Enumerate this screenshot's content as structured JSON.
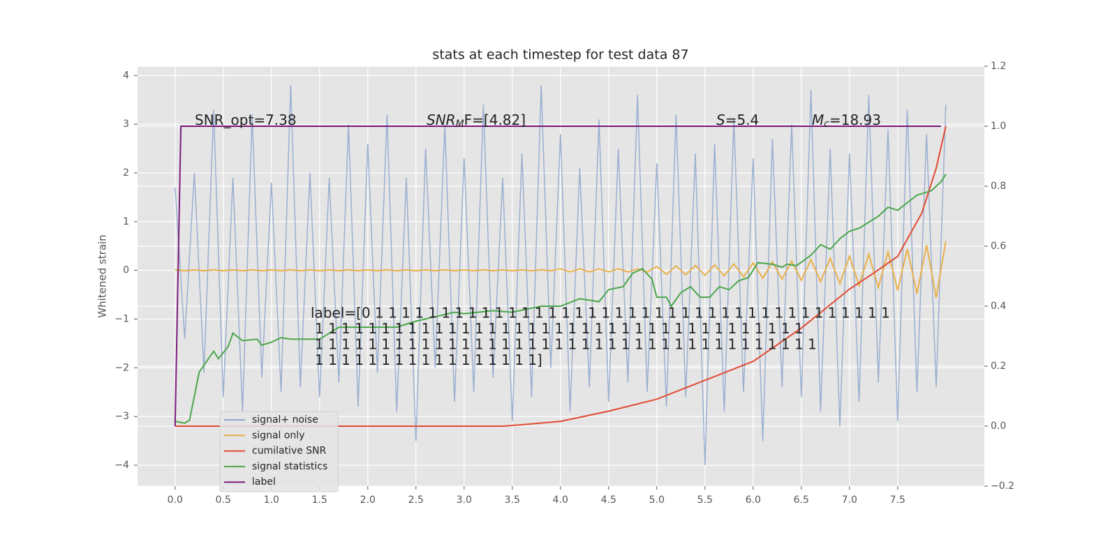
{
  "chart_data": {
    "type": "line",
    "title": "stats at each timestep for test data 87",
    "y_label": "Whitened strain",
    "xlim": [
      -0.39,
      8.4
    ],
    "ylim": [
      -4.43,
      4.19
    ],
    "y2lim": [
      -0.2,
      1.2
    ],
    "xticks": [
      {
        "value": 0,
        "label": "0.0"
      },
      0.5,
      {
        "value": 1,
        "label": "1.0"
      },
      1.5,
      {
        "value": 2,
        "label": "2.0"
      },
      2.5,
      {
        "value": 3,
        "label": "3.0"
      },
      3.5,
      {
        "value": 4,
        "label": "4.0"
      },
      4.5,
      {
        "value": 5,
        "label": "5.0"
      },
      5.5,
      {
        "value": 6,
        "label": "6.0"
      },
      6.5,
      {
        "value": 7,
        "label": "7.0"
      },
      7.5
    ],
    "yticks": [
      {
        "value": -4,
        "label": "−4"
      },
      {
        "value": -3,
        "label": "−3"
      },
      {
        "value": -2,
        "label": "−2"
      },
      {
        "value": -1,
        "label": "−1"
      },
      0,
      1,
      2,
      3,
      4
    ],
    "y2ticks": [
      {
        "value": -0.2,
        "label": "−0.2"
      },
      {
        "value": 0,
        "label": "0.0"
      },
      0.2,
      0.4,
      0.6,
      0.8,
      {
        "value": 1,
        "label": "1.0"
      },
      1.2
    ],
    "grid": true,
    "legend": "lower left",
    "series": [
      {
        "name": "signal+ noise",
        "color": "#92a8cd",
        "x": [
          0,
          0.1,
          0.2,
          0.3,
          0.4,
          0.5,
          0.6,
          0.7,
          0.8,
          0.9,
          1,
          1.1,
          1.2,
          1.3,
          1.4,
          1.5,
          1.6,
          1.7,
          1.8,
          1.9,
          2,
          2.1,
          2.2,
          2.3,
          2.4,
          2.5,
          2.6,
          2.7,
          2.8,
          2.9,
          3,
          3.1,
          3.2,
          3.3,
          3.4,
          3.5,
          3.6,
          3.7,
          3.8,
          3.9,
          4,
          4.1,
          4.2,
          4.3,
          4.4,
          4.5,
          4.6,
          4.7,
          4.8,
          4.9,
          5,
          5.1,
          5.2,
          5.3,
          5.4,
          5.5,
          5.6,
          5.7,
          5.8,
          5.9,
          6,
          6.1,
          6.2,
          6.3,
          6.4,
          6.5,
          6.6,
          6.7,
          6.8,
          6.9,
          7,
          7.1,
          7.2,
          7.3,
          7.4,
          7.5,
          7.6,
          7.7,
          7.8,
          7.9,
          8
        ],
        "values": [
          1.7,
          -1.4,
          2.0,
          -2.1,
          3.3,
          -2.6,
          1.9,
          -2.9,
          3.2,
          -2.2,
          1.8,
          -2.5,
          3.8,
          -2.4,
          2.0,
          -2.6,
          1.9,
          -2.3,
          3.0,
          -2.8,
          2.6,
          -2.1,
          3.2,
          -2.9,
          1.9,
          -3.5,
          2.5,
          -2.0,
          3.0,
          -2.7,
          2.3,
          -2.5,
          3.4,
          -2.2,
          1.9,
          -3.1,
          2.4,
          -2.6,
          3.8,
          -2.0,
          2.8,
          -2.9,
          2.1,
          -2.4,
          3.1,
          -2.7,
          2.5,
          -2.3,
          3.6,
          -2.5,
          2.2,
          -2.8,
          3.2,
          -2.6,
          2.4,
          -4.0,
          2.6,
          -2.9,
          3.1,
          -2.5,
          2.3,
          -3.5,
          2.7,
          -2.4,
          3.0,
          -2.6,
          3.7,
          -2.9,
          2.5,
          -3.2,
          2.4,
          -2.7,
          3.6,
          -2.3,
          2.9,
          -3.1,
          3.3,
          -2.5,
          2.8,
          -2.4,
          3.4
        ]
      },
      {
        "name": "signal only",
        "color": "#e8b04a",
        "x": [
          0,
          0.1,
          0.2,
          0.3,
          0.4,
          0.5,
          0.6,
          0.7,
          0.8,
          0.9,
          1,
          1.1,
          1.2,
          1.3,
          1.4,
          1.5,
          1.6,
          1.7,
          1.8,
          1.9,
          2,
          2.1,
          2.2,
          2.3,
          2.4,
          2.5,
          2.6,
          2.7,
          2.8,
          2.9,
          3,
          3.1,
          3.2,
          3.3,
          3.4,
          3.5,
          3.6,
          3.7,
          3.8,
          3.9,
          4,
          4.1,
          4.2,
          4.3,
          4.4,
          4.5,
          4.6,
          4.7,
          4.8,
          4.9,
          5,
          5.1,
          5.2,
          5.3,
          5.4,
          5.5,
          5.6,
          5.7,
          5.8,
          5.9,
          6,
          6.1,
          6.2,
          6.3,
          6.4,
          6.5,
          6.6,
          6.7,
          6.8,
          6.9,
          7,
          7.1,
          7.2,
          7.3,
          7.4,
          7.5,
          7.6,
          7.7,
          7.8,
          7.9,
          8
        ],
        "values": [
          0.01,
          -0.01,
          0.01,
          -0.01,
          0.01,
          -0.01,
          0.01,
          -0.01,
          0.01,
          -0.01,
          0.01,
          -0.01,
          0.01,
          -0.01,
          0.01,
          -0.01,
          0.01,
          -0.01,
          0.01,
          -0.01,
          0.01,
          -0.01,
          0.01,
          -0.01,
          0.01,
          -0.01,
          0.01,
          -0.01,
          0.01,
          -0.01,
          0.01,
          -0.01,
          0.01,
          -0.01,
          0.01,
          -0.01,
          0.01,
          -0.01,
          0.01,
          -0.01,
          0.03,
          -0.03,
          0.03,
          -0.03,
          0.03,
          -0.03,
          0.03,
          -0.03,
          0.03,
          -0.03,
          0.08,
          -0.08,
          0.09,
          -0.09,
          0.1,
          -0.1,
          0.11,
          -0.11,
          0.13,
          -0.13,
          0.15,
          -0.16,
          0.17,
          -0.18,
          0.19,
          -0.2,
          0.22,
          -0.23,
          0.25,
          -0.27,
          0.29,
          -0.31,
          0.33,
          -0.35,
          0.38,
          -0.41,
          0.44,
          -0.48,
          0.52,
          -0.56,
          0.6
        ]
      },
      {
        "name": "cumilative SNR",
        "color": "#e24a33",
        "axis": "y2",
        "x": [
          0,
          1,
          2,
          3,
          3.4,
          3.6,
          4,
          4.5,
          5,
          5.5,
          6,
          6.5,
          7,
          7.25,
          7.5,
          7.75,
          7.9,
          8
        ],
        "values": [
          0,
          0,
          0,
          0,
          0,
          0.005,
          0.016,
          0.05,
          0.09,
          0.153,
          0.216,
          0.327,
          0.457,
          0.51,
          0.566,
          0.71,
          0.86,
          1.0
        ]
      },
      {
        "name": "signal statistics",
        "color": "#4aa64a",
        "axis": "y2",
        "x": [
          0,
          0.1,
          0.15,
          0.25,
          0.4,
          0.45,
          0.55,
          0.6,
          0.7,
          0.85,
          0.9,
          1,
          1.1,
          1.2,
          1.5,
          1.7,
          2,
          2.3,
          2.5,
          2.9,
          3,
          3.3,
          3.5,
          3.8,
          4,
          4.2,
          4.4,
          4.5,
          4.65,
          4.75,
          4.85,
          4.95,
          5,
          5.1,
          5.15,
          5.25,
          5.35,
          5.45,
          5.55,
          5.65,
          5.75,
          5.85,
          5.95,
          6.05,
          6.2,
          6.3,
          6.35,
          6.45,
          6.6,
          6.7,
          6.8,
          6.9,
          7,
          7.1,
          7.2,
          7.3,
          7.4,
          7.5,
          7.6,
          7.7,
          7.85,
          7.95,
          8
        ],
        "values": [
          0.016,
          0.01,
          0.02,
          0.18,
          0.25,
          0.225,
          0.265,
          0.31,
          0.285,
          0.29,
          0.27,
          0.28,
          0.295,
          0.29,
          0.29,
          0.33,
          0.33,
          0.33,
          0.35,
          0.38,
          0.375,
          0.385,
          0.38,
          0.4,
          0.4,
          0.425,
          0.415,
          0.455,
          0.465,
          0.51,
          0.525,
          0.49,
          0.43,
          0.43,
          0.4,
          0.445,
          0.465,
          0.43,
          0.43,
          0.465,
          0.455,
          0.485,
          0.495,
          0.545,
          0.54,
          0.53,
          0.54,
          0.535,
          0.57,
          0.605,
          0.59,
          0.625,
          0.65,
          0.66,
          0.68,
          0.7,
          0.73,
          0.72,
          0.745,
          0.77,
          0.785,
          0.815,
          0.84
        ]
      },
      {
        "name": "label",
        "color": "#7b1a7b",
        "axis": "y2",
        "x": [
          0,
          0.06,
          7.95
        ],
        "values": [
          0,
          1,
          1
        ]
      }
    ],
    "annotations": [
      {
        "text": "SNR_opt=7.38"
      },
      {
        "base": "SNR",
        "sub": "M",
        "rest": "F=[4.82]"
      },
      {
        "base": "S",
        "rest": "=5.4"
      },
      {
        "base": "M",
        "sub": "c",
        "rest": "=18.93"
      }
    ],
    "label_text": [
      "label=[0 1 1 1 1 1 1 1 1 1 1 1 1 1 1 1 1 1 1 1 1 1 1 1 1 1 1 1 1 1 1 1 1 1 1 1 1 1 1 1",
      "1 1 1 1 1 1 1 1 1 1 1 1 1 1 1 1 1 1 1 1 1 1 1 1 1 1 1 1 1 1 1 1 1 1 1 1 1",
      "1 1 1 1 1 1 1 1 1 1 1 1 1 1 1 1 1 1 1 1 1 1 1 1 1 1 1 1 1 1 1 1 1 1 1 1 1 1",
      "1 1 1 1 1 1 1 1 1 1 1 1 1 1 1 1 1]"
    ]
  }
}
